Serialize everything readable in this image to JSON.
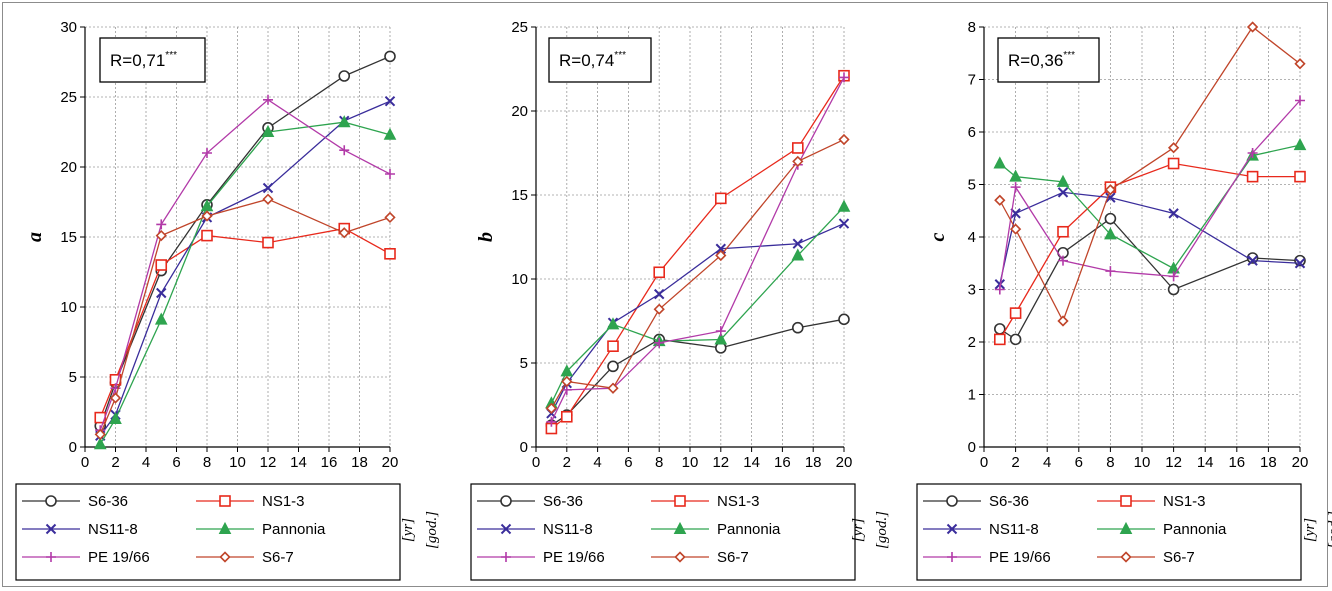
{
  "colors": {
    "S6-36": "#333333",
    "NS1-3": "#e8291c",
    "NS11-8": "#3a2d9b",
    "Pannonia": "#2ea44f",
    "PE 19/66": "#b23aa8",
    "S6-7": "#c0452a"
  },
  "markers": {
    "S6-36": "circle",
    "NS1-3": "square",
    "NS11-8": "x",
    "Pannonia": "triangle",
    "PE 19/66": "plus",
    "S6-7": "diamond"
  },
  "unit_label": {
    "yr": "[yr]",
    "god": "[god.]"
  },
  "chart_data": [
    {
      "type": "line",
      "ylabel": "a",
      "r_label": "R=0,71",
      "r_sup": "***",
      "xlim": [
        0,
        20
      ],
      "ylim": [
        0,
        30
      ],
      "xticks": [
        0,
        2,
        4,
        6,
        8,
        10,
        12,
        14,
        16,
        18,
        20
      ],
      "yticks": [
        0,
        5,
        10,
        15,
        20,
        25,
        30
      ],
      "grid": true,
      "legend": "bottom",
      "x": [
        1,
        2,
        5,
        8,
        12,
        17,
        20
      ],
      "series": [
        {
          "name": "S6-36",
          "values": [
            1.5,
            4.6,
            12.6,
            17.3,
            22.8,
            26.5,
            27.9
          ]
        },
        {
          "name": "NS1-3",
          "values": [
            2.1,
            4.8,
            13.0,
            15.1,
            14.6,
            15.6,
            13.8
          ]
        },
        {
          "name": "NS11-8",
          "values": [
            0.8,
            2.3,
            11.0,
            16.4,
            18.5,
            23.3,
            24.7
          ]
        },
        {
          "name": "Pannonia",
          "values": [
            0.2,
            2.0,
            9.1,
            17.2,
            22.5,
            23.2,
            22.3
          ]
        },
        {
          "name": "PE 19/66",
          "values": [
            1.2,
            4.2,
            15.9,
            21.0,
            24.8,
            21.2,
            19.5
          ]
        },
        {
          "name": "S6-7",
          "values": [
            0.9,
            3.5,
            15.1,
            16.5,
            17.7,
            15.3,
            16.4
          ]
        }
      ]
    },
    {
      "type": "line",
      "ylabel": "b",
      "r_label": "R=0,74",
      "r_sup": "***",
      "xlim": [
        0,
        20
      ],
      "ylim": [
        0,
        25
      ],
      "xticks": [
        0,
        2,
        4,
        6,
        8,
        10,
        12,
        14,
        16,
        18,
        20
      ],
      "yticks": [
        0,
        5,
        10,
        15,
        20,
        25
      ],
      "grid": true,
      "legend": "bottom",
      "x": [
        1,
        2,
        5,
        8,
        12,
        17,
        20
      ],
      "series": [
        {
          "name": "S6-36",
          "values": [
            1.3,
            1.9,
            4.8,
            6.4,
            5.9,
            7.1,
            7.6
          ]
        },
        {
          "name": "NS1-3",
          "values": [
            1.1,
            1.8,
            6.0,
            10.4,
            14.8,
            17.8,
            22.1
          ]
        },
        {
          "name": "NS11-8",
          "values": [
            2.0,
            3.8,
            7.4,
            9.1,
            11.8,
            12.1,
            13.3
          ]
        },
        {
          "name": "Pannonia",
          "values": [
            2.6,
            4.5,
            7.3,
            6.3,
            6.4,
            11.4,
            14.3
          ]
        },
        {
          "name": "PE 19/66",
          "values": [
            1.5,
            3.4,
            3.5,
            6.2,
            6.9,
            16.8,
            22.0
          ]
        },
        {
          "name": "S6-7",
          "values": [
            2.3,
            3.9,
            3.5,
            8.2,
            11.4,
            17.0,
            18.3
          ]
        }
      ]
    },
    {
      "type": "line",
      "ylabel": "c",
      "r_label": "R=0,36",
      "r_sup": "***",
      "xlim": [
        0,
        20
      ],
      "ylim": [
        0,
        8
      ],
      "xticks": [
        0,
        2,
        4,
        6,
        8,
        10,
        12,
        14,
        16,
        18,
        20
      ],
      "yticks": [
        0,
        1,
        2,
        3,
        4,
        5,
        6,
        7,
        8
      ],
      "grid": true,
      "legend": "bottom",
      "x": [
        1,
        2,
        5,
        8,
        12,
        17,
        20
      ],
      "series": [
        {
          "name": "S6-36",
          "values": [
            2.25,
            2.05,
            3.7,
            4.35,
            3.0,
            3.6,
            3.55
          ]
        },
        {
          "name": "NS1-3",
          "values": [
            2.05,
            2.55,
            4.1,
            4.95,
            5.4,
            5.15,
            5.15
          ]
        },
        {
          "name": "NS11-8",
          "values": [
            3.1,
            4.45,
            4.85,
            4.75,
            4.45,
            3.55,
            3.5
          ]
        },
        {
          "name": "Pannonia",
          "values": [
            5.4,
            5.15,
            5.05,
            4.05,
            3.4,
            5.55,
            5.75
          ]
        },
        {
          "name": "PE 19/66",
          "values": [
            3.0,
            4.95,
            3.55,
            3.35,
            3.25,
            5.6,
            6.6
          ]
        },
        {
          "name": "S6-7",
          "values": [
            4.7,
            4.15,
            2.4,
            4.9,
            5.7,
            8.0,
            7.3
          ]
        }
      ]
    }
  ]
}
